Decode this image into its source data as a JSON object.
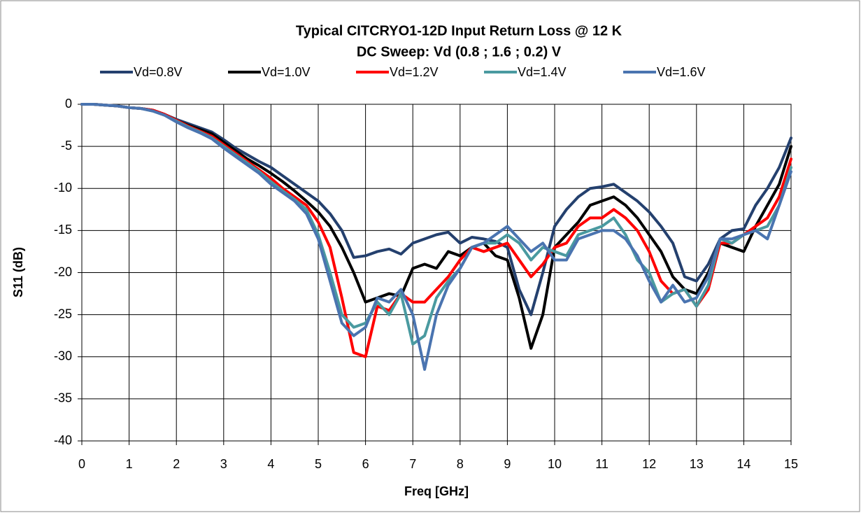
{
  "chart_data": {
    "type": "line",
    "title": "Typical CITCRYO1-12D Input Return Loss @ 12 K",
    "subtitle": "DC Sweep: Vd  (0.8 ; 1.6 ; 0.2) V",
    "xlabel": "Freq [GHz]",
    "ylabel": "S11 (dB)",
    "x": [
      0,
      0.25,
      0.5,
      0.75,
      1,
      1.25,
      1.5,
      1.75,
      2,
      2.25,
      2.5,
      2.75,
      3,
      3.25,
      3.5,
      3.75,
      4,
      4.25,
      4.5,
      4.75,
      5,
      5.25,
      5.5,
      5.75,
      6,
      6.25,
      6.5,
      6.75,
      7,
      7.25,
      7.5,
      7.75,
      8,
      8.25,
      8.5,
      8.75,
      9,
      9.25,
      9.5,
      9.75,
      10,
      10.25,
      10.5,
      10.75,
      11,
      11.25,
      11.5,
      11.75,
      12,
      12.25,
      12.5,
      12.75,
      13,
      13.25,
      13.5,
      13.75,
      14,
      14.25,
      14.5,
      14.75,
      15
    ],
    "series": [
      {
        "name": "Vd=0.8V",
        "color": "#24406e",
        "values": [
          0,
          0,
          -0.1,
          -0.2,
          -0.4,
          -0.5,
          -0.7,
          -1.2,
          -1.8,
          -2.3,
          -2.8,
          -3.3,
          -4.2,
          -5.2,
          -6.0,
          -6.8,
          -7.5,
          -8.5,
          -9.5,
          -10.5,
          -11.5,
          -13,
          -15,
          -18.2,
          -18,
          -17.5,
          -17.2,
          -17.8,
          -16.5,
          -16,
          -15.5,
          -15.2,
          -16.5,
          -15.8,
          -16,
          -16.3,
          -17,
          -22,
          -25,
          -20,
          -14.5,
          -12.5,
          -11,
          -10,
          -9.8,
          -9.5,
          -10.5,
          -11.5,
          -12.8,
          -14.5,
          -16.5,
          -20.5,
          -21,
          -19,
          -16,
          -15,
          -14.8,
          -12,
          -10,
          -7.5,
          -4
        ]
      },
      {
        "name": "Vd=1.0V",
        "color": "#000000",
        "values": [
          0,
          0,
          -0.1,
          -0.2,
          -0.4,
          -0.5,
          -0.7,
          -1.2,
          -1.9,
          -2.5,
          -3,
          -3.5,
          -4.5,
          -5.5,
          -6.5,
          -7.3,
          -8.2,
          -9.2,
          -10.3,
          -11.5,
          -12.8,
          -14.5,
          -17,
          -20,
          -23.5,
          -23,
          -22.5,
          -22.8,
          -19.5,
          -19,
          -19.5,
          -17.5,
          -18,
          -17,
          -16.5,
          -18,
          -18.5,
          -23,
          -29,
          -25,
          -17,
          -15.5,
          -14,
          -12,
          -11.5,
          -11,
          -12,
          -13.5,
          -15.5,
          -17.5,
          -20.5,
          -22,
          -22.5,
          -20,
          -16.5,
          -17,
          -17.5,
          -14.5,
          -12,
          -9.5,
          -5
        ]
      },
      {
        "name": "Vd=1.2V",
        "color": "#ff0000",
        "values": [
          0,
          0,
          -0.1,
          -0.2,
          -0.4,
          -0.5,
          -0.7,
          -1.2,
          -1.9,
          -2.6,
          -3.2,
          -3.8,
          -4.8,
          -5.8,
          -6.8,
          -7.8,
          -8.8,
          -10,
          -11,
          -12,
          -14,
          -17,
          -23,
          -29.5,
          -30,
          -24,
          -24.5,
          -22.5,
          -23.5,
          -23.5,
          -22,
          -20.5,
          -18.5,
          -17,
          -17.5,
          -17,
          -16.5,
          -18.5,
          -20.5,
          -19,
          -17,
          -16.5,
          -14.5,
          -13.5,
          -13.5,
          -12.5,
          -13.5,
          -15,
          -17.5,
          -21,
          -22.5,
          -22,
          -24,
          -22,
          -16.5,
          -16.5,
          -15.5,
          -14.5,
          -13.5,
          -11,
          -6.5
        ]
      },
      {
        "name": "Vd=1.4V",
        "color": "#4a9aa0",
        "values": [
          0,
          0,
          -0.1,
          -0.2,
          -0.4,
          -0.5,
          -0.8,
          -1.3,
          -2,
          -2.7,
          -3.3,
          -4,
          -5,
          -6,
          -7,
          -8,
          -9.2,
          -10.3,
          -11.3,
          -12.5,
          -15.5,
          -20,
          -25,
          -26.5,
          -26,
          -23.5,
          -25,
          -22.5,
          -28.5,
          -27.5,
          -23,
          -21,
          -19.5,
          -17,
          -16.5,
          -16.5,
          -15.5,
          -16.5,
          -18.5,
          -17,
          -17.5,
          -18,
          -15.5,
          -15,
          -14.5,
          -13.5,
          -15.5,
          -18.5,
          -20,
          -23.5,
          -22.5,
          -22,
          -24,
          -21.5,
          -16,
          -16.5,
          -15.5,
          -15,
          -14.5,
          -12,
          -7.5
        ]
      },
      {
        "name": "Vd=1.6V",
        "color": "#4a74b0",
        "values": [
          0,
          0,
          -0.1,
          -0.2,
          -0.4,
          -0.5,
          -0.8,
          -1.3,
          -2.1,
          -2.8,
          -3.4,
          -4.1,
          -5.2,
          -6.2,
          -7.2,
          -8.2,
          -9.5,
          -10.5,
          -11.5,
          -13,
          -16,
          -21,
          -26,
          -27.5,
          -26.5,
          -23,
          -23.5,
          -22,
          -25,
          -31.5,
          -25,
          -21.5,
          -19.5,
          -17,
          -16.5,
          -15.5,
          -14.5,
          -16,
          -17.5,
          -16.5,
          -18.5,
          -18.5,
          -16,
          -15.5,
          -15,
          -15,
          -16,
          -18,
          -21,
          -23.5,
          -21.5,
          -23.5,
          -23,
          -20.5,
          -16,
          -16,
          -15.5,
          -15,
          -16,
          -12,
          -8
        ]
      }
    ],
    "xlim": [
      0,
      15
    ],
    "xticks": [
      0,
      1,
      2,
      3,
      4,
      5,
      6,
      7,
      8,
      9,
      10,
      11,
      12,
      13,
      14,
      15
    ],
    "ylim": [
      -40,
      0
    ],
    "yticks": [
      0,
      -5,
      -10,
      -15,
      -20,
      -25,
      -30,
      -35,
      -40
    ],
    "grid": true,
    "legend": "top"
  }
}
